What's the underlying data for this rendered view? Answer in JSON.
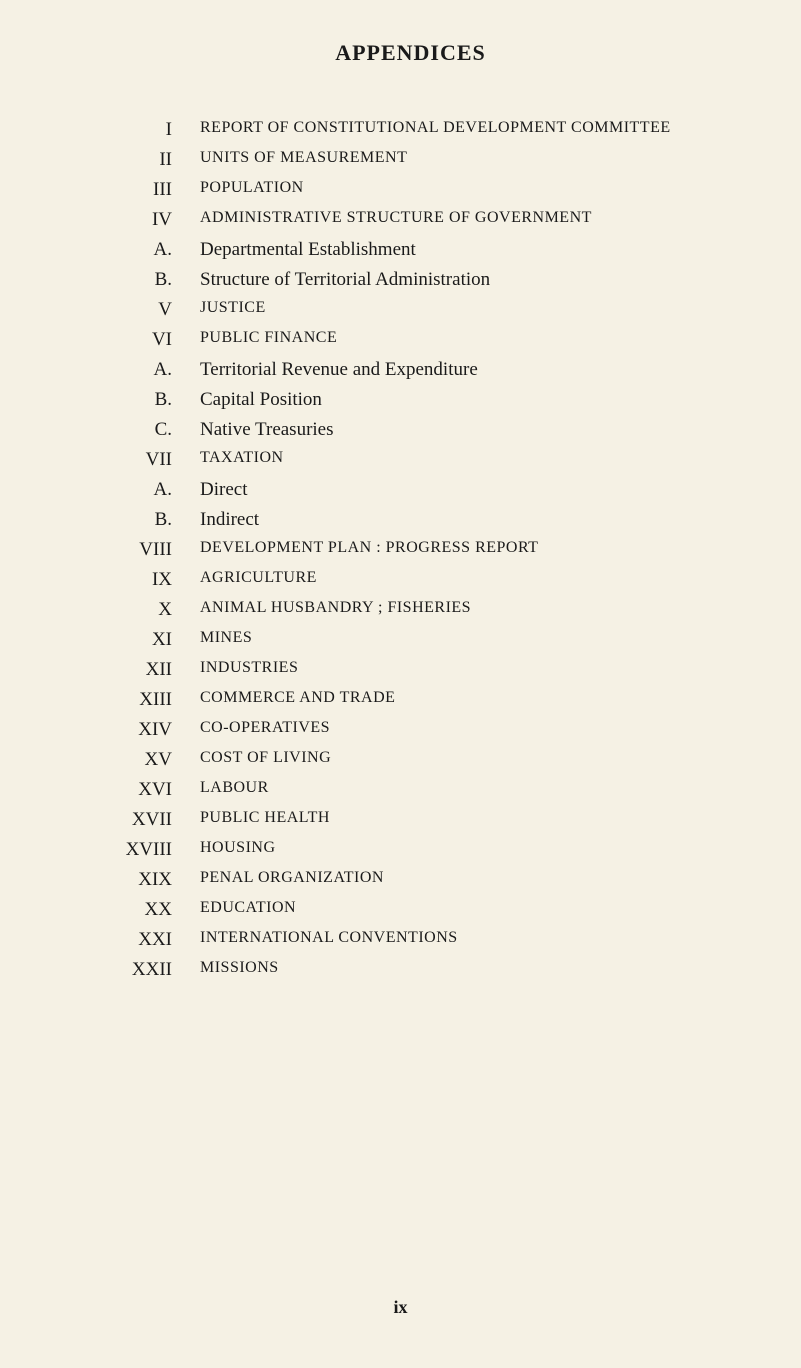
{
  "title": "APPENDICES",
  "entries": [
    {
      "label": "I",
      "text": "REPORT OF CONSTITUTIONAL DEVELOPMENT COMMITTEE",
      "caps": true
    },
    {
      "label": "II",
      "text": "UNITS OF MEASUREMENT",
      "caps": true
    },
    {
      "label": "III",
      "text": "POPULATION",
      "caps": true
    },
    {
      "label": "IV",
      "text": "ADMINISTRATIVE STRUCTURE OF GOVERNMENT",
      "caps": true
    },
    {
      "label": "A.",
      "text": "Departmental Establishment",
      "caps": false
    },
    {
      "label": "B.",
      "text": "Structure of Territorial Administration",
      "caps": false
    },
    {
      "label": "V",
      "text": "JUSTICE",
      "caps": true
    },
    {
      "label": "VI",
      "text": "PUBLIC FINANCE",
      "caps": true
    },
    {
      "label": "A.",
      "text": "Territorial Revenue and Expenditure",
      "caps": false
    },
    {
      "label": "B.",
      "text": "Capital Position",
      "caps": false
    },
    {
      "label": "C.",
      "text": "Native Treasuries",
      "caps": false
    },
    {
      "label": "VII",
      "text": "TAXATION",
      "caps": true
    },
    {
      "label": "A.",
      "text": "Direct",
      "caps": false
    },
    {
      "label": "B.",
      "text": "Indirect",
      "caps": false
    },
    {
      "label": "VIII",
      "text": "DEVELOPMENT PLAN : PROGRESS REPORT",
      "caps": true
    },
    {
      "label": "IX",
      "text": "AGRICULTURE",
      "caps": true
    },
    {
      "label": "X",
      "text": "ANIMAL HUSBANDRY ; FISHERIES",
      "caps": true
    },
    {
      "label": "XI",
      "text": "MINES",
      "caps": true
    },
    {
      "label": "XII",
      "text": "INDUSTRIES",
      "caps": true
    },
    {
      "label": "XIII",
      "text": "COMMERCE AND TRADE",
      "caps": true
    },
    {
      "label": "XIV",
      "text": "CO-OPERATIVES",
      "caps": true
    },
    {
      "label": "XV",
      "text": "COST OF LIVING",
      "caps": true
    },
    {
      "label": "XVI",
      "text": "LABOUR",
      "caps": true
    },
    {
      "label": "XVII",
      "text": "PUBLIC HEALTH",
      "caps": true
    },
    {
      "label": "XVIII",
      "text": "HOUSING",
      "caps": true
    },
    {
      "label": "XIX",
      "text": "PENAL ORGANIZATION",
      "caps": true
    },
    {
      "label": "XX",
      "text": "EDUCATION",
      "caps": true
    },
    {
      "label": "XXI",
      "text": "INTERNATIONAL CONVENTIONS",
      "caps": true
    },
    {
      "label": "XXII",
      "text": "MISSIONS",
      "caps": true
    }
  ],
  "page_number": "ix",
  "style": {
    "background_color": "#f5f1e4",
    "text_color": "#1a1a1a",
    "title_fontsize": 22,
    "body_fontsize": 19,
    "caps_fontsize": 16,
    "label_col_width": 120,
    "row_spacing": 8,
    "font_family": "Times New Roman"
  }
}
